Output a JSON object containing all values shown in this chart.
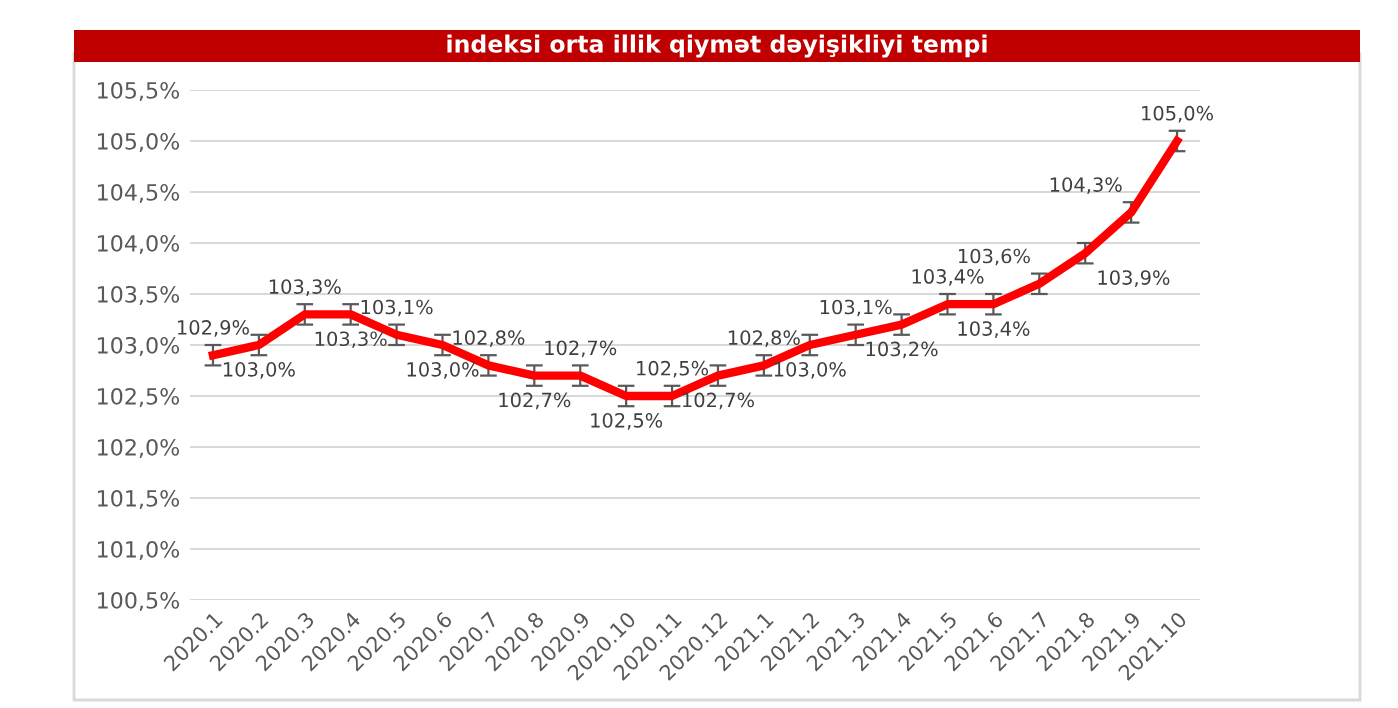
{
  "chart_data": {
    "type": "line",
    "title": "indeksi orta illik qiymət dəyişikliyi tempi",
    "categories": [
      "2020.1",
      "2020.2",
      "2020.3",
      "2020.4",
      "2020.5",
      "2020.6",
      "2020.7",
      "2020.8",
      "2020.9",
      "2020.10",
      "2020.11",
      "2020.12",
      "2021.1",
      "2021.2",
      "2021.3",
      "2021.4",
      "2021.5",
      "2021.6",
      "2021.7",
      "2021.8",
      "2021.9",
      "2021.10"
    ],
    "series": [
      {
        "color": "#ff0000",
        "values": [
          102.9,
          103.0,
          103.3,
          103.3,
          103.1,
          103.0,
          102.8,
          102.7,
          102.7,
          102.5,
          102.5,
          102.7,
          102.8,
          103.0,
          103.1,
          103.2,
          103.4,
          103.4,
          103.6,
          103.9,
          104.3,
          105.0
        ],
        "errors": [
          0.1,
          0.1,
          0.1,
          0.1,
          0.1,
          0.1,
          0.1,
          0.1,
          0.1,
          0.1,
          0.1,
          0.1,
          0.1,
          0.1,
          0.1,
          0.1,
          0.1,
          0.1,
          0.1,
          0.1,
          0.1,
          0.1
        ],
        "value_labels": [
          "102,9%",
          "103,0%",
          "103,3%",
          "103,3%",
          "103,1%",
          "103,0%",
          "102,8%",
          "102,7%",
          "102,7%",
          "102,5%",
          "102,5%",
          "102,7%",
          "102,8%",
          "103,0%",
          "103,1%",
          "103,2%",
          "103,4%",
          "103,4%",
          "103,6%",
          "103,9%",
          "104,3%",
          "105,0%"
        ]
      }
    ],
    "ylim": [
      100.5,
      105.5
    ],
    "yticks": [
      {
        "value": 100.5,
        "label": "100,5%"
      },
      {
        "value": 101.0,
        "label": "101,0%"
      },
      {
        "value": 101.5,
        "label": "101,5%"
      },
      {
        "value": 102.0,
        "label": "102,0%"
      },
      {
        "value": 102.5,
        "label": "102,5%"
      },
      {
        "value": 103.0,
        "label": "103,0%"
      },
      {
        "value": 103.5,
        "label": "103,5%"
      },
      {
        "value": 104.0,
        "label": "104,0%"
      },
      {
        "value": 104.5,
        "label": "104,5%"
      },
      {
        "value": 105.0,
        "label": "105,0%"
      },
      {
        "value": 105.5,
        "label": "105,5%"
      }
    ],
    "grid": "y",
    "legend": false,
    "marker": "none",
    "line_style": "solid"
  }
}
